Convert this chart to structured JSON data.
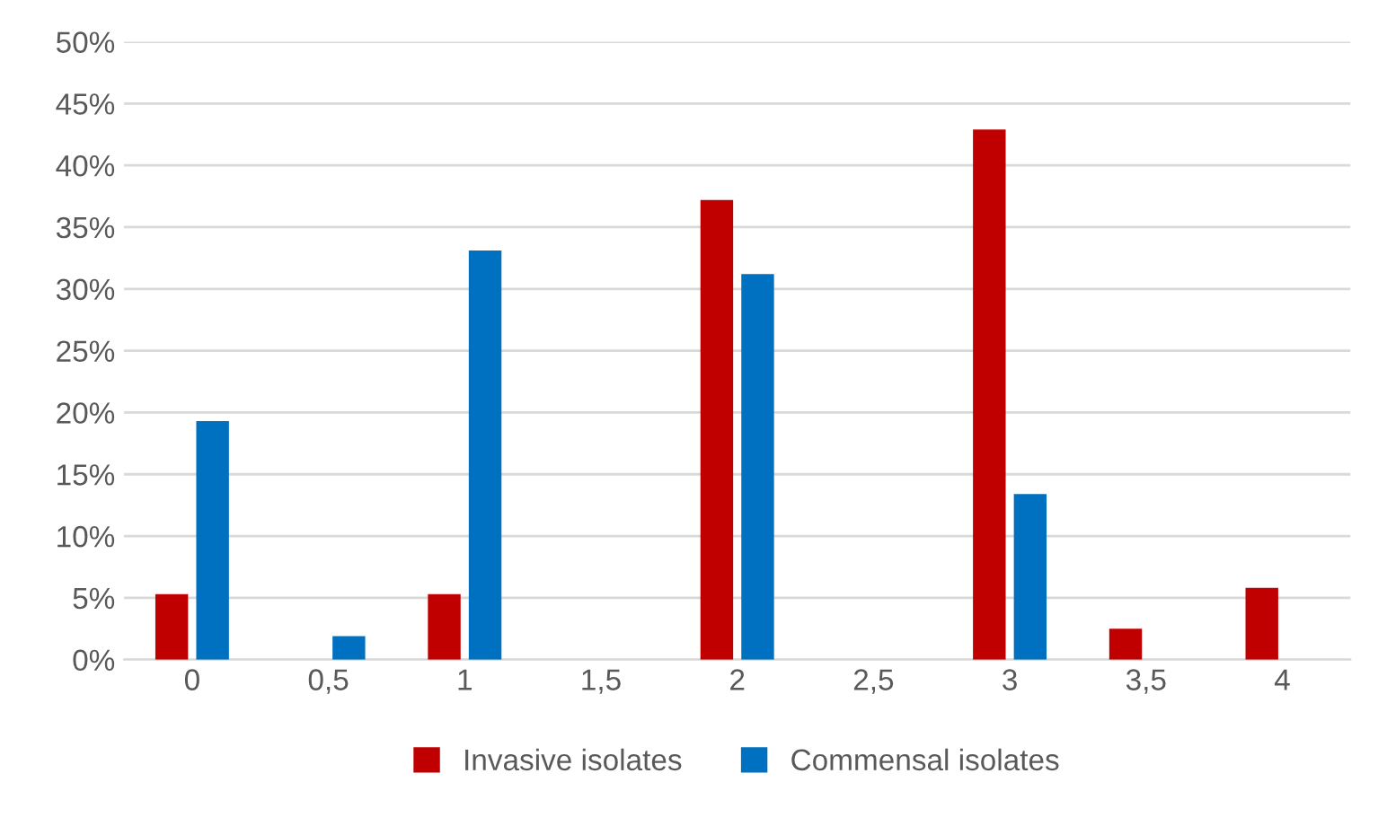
{
  "chart_data": {
    "type": "bar",
    "categories": [
      "0",
      "0,5",
      "1",
      "1,5",
      "2",
      "2,5",
      "3",
      "3,5",
      "4"
    ],
    "series": [
      {
        "name": "Invasive isolates",
        "color": "#c00000",
        "values": [
          5.3,
          null,
          5.3,
          null,
          37.2,
          null,
          42.9,
          2.5,
          5.8
        ]
      },
      {
        "name": "Commensal isolates",
        "color": "#0070c0",
        "values": [
          19.3,
          1.9,
          33.1,
          null,
          31.2,
          null,
          13.4,
          null,
          null
        ]
      }
    ],
    "ylim": [
      0,
      50
    ],
    "yticks": [
      {
        "value": 0,
        "label": "0%"
      },
      {
        "value": 5,
        "label": "5%"
      },
      {
        "value": 10,
        "label": "10%"
      },
      {
        "value": 15,
        "label": "15%"
      },
      {
        "value": 20,
        "label": "20%"
      },
      {
        "value": 25,
        "label": "25%"
      },
      {
        "value": 30,
        "label": "30%"
      },
      {
        "value": 35,
        "label": "35%"
      },
      {
        "value": 40,
        "label": "40%"
      },
      {
        "value": 45,
        "label": "45%"
      },
      {
        "value": 50,
        "label": "50%"
      }
    ],
    "grid": "y",
    "legend": "bottom"
  }
}
